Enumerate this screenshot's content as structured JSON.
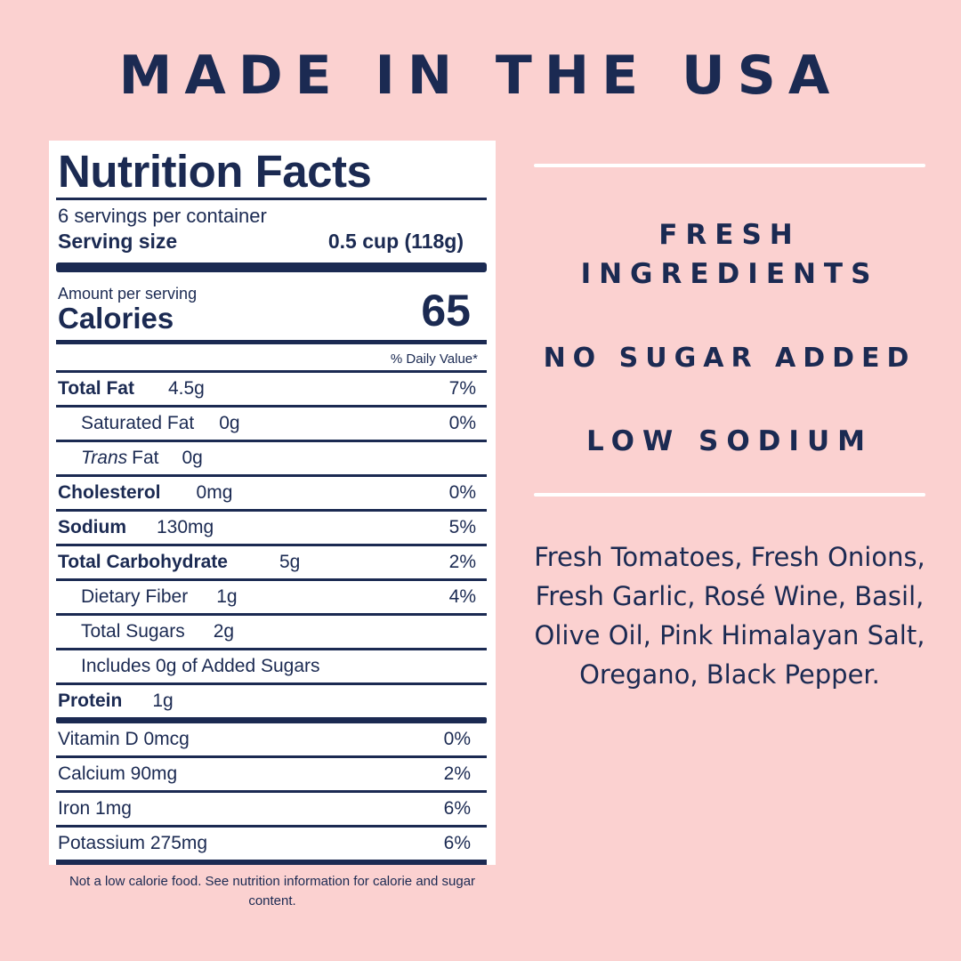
{
  "headline": "MADE IN THE USA",
  "nutrition": {
    "title": "Nutrition Facts",
    "servings_per_container": "6 servings per container",
    "serving_size_label": "Serving size",
    "serving_size_value": "0.5 cup (118g)",
    "amount_per_serving": "Amount per serving",
    "calories_label": "Calories",
    "calories_value": "65",
    "daily_value_header": "% Daily Value*",
    "rows": [
      {
        "name": "Total Fat",
        "amount": "4.5g",
        "dv": "7%"
      },
      {
        "name": "Saturated Fat",
        "amount": "0g",
        "dv": "0%"
      },
      {
        "name_italic": "Trans",
        "name": "Fat",
        "amount": "0g",
        "dv": ""
      },
      {
        "name": "Cholesterol",
        "amount": "0mg",
        "dv": "0%"
      },
      {
        "name": "Sodium",
        "amount": "130mg",
        "dv": "5%"
      },
      {
        "name": "Total Carbohydrate",
        "amount": "5g",
        "dv": "2%"
      },
      {
        "name": "Dietary Fiber",
        "amount": "1g",
        "dv": "4%"
      },
      {
        "name": "Total Sugars",
        "amount": "2g",
        "dv": ""
      },
      {
        "name": "Includes 0g of Added Sugars",
        "amount": "",
        "dv": ""
      },
      {
        "name": "Protein",
        "amount": "1g",
        "dv": ""
      }
    ],
    "vitamins": [
      {
        "label": "Vitamin D 0mcg",
        "dv": "0%"
      },
      {
        "label": "Calcium 90mg",
        "dv": "2%"
      },
      {
        "label": "Iron 1mg",
        "dv": "6%"
      },
      {
        "label": "Potassium 275mg",
        "dv": "6%"
      }
    ]
  },
  "footnote": "Not a low calorie food. See nutrition information for calorie and sugar content.",
  "claims": {
    "fresh_line1": "FRESH",
    "fresh_line2": "INGREDIENTS",
    "no_sugar": "NO SUGAR ADDED",
    "low_sodium": "LOW SODIUM"
  },
  "ingredients": "Fresh Tomatoes, Fresh Onions, Fresh Garlic, Rosé Wine, Basil, Olive Oil, Pink Himalayan Salt, Oregano, Black Pepper.",
  "colors": {
    "background": "#fbd1d0",
    "navy": "#1b2a52",
    "panel": "#ffffff"
  }
}
